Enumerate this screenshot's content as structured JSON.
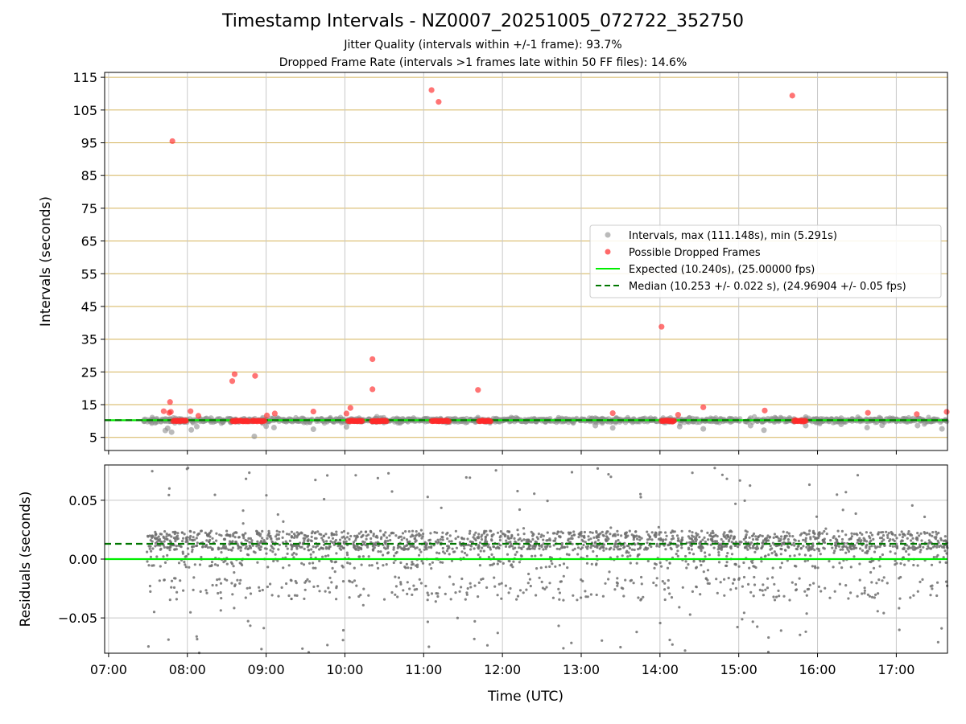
{
  "chart_data": [
    {
      "type": "scatter",
      "title": "Timestamp Intervals - NZ0007_20251005_072722_352750",
      "subtitle_lines": [
        "Jitter Quality (intervals within +/-1 frame): 93.7%",
        "Dropped Frame Rate (intervals >1 frames late within 50 FF files): 14.6%"
      ],
      "ylabel": "Intervals (seconds)",
      "xlim_hours": [
        6.95,
        17.65
      ],
      "ylim": [
        1.0,
        116.5
      ],
      "yticks": [
        5,
        15,
        25,
        35,
        45,
        55,
        65,
        75,
        85,
        95,
        105,
        115
      ],
      "xticks": [
        7,
        8,
        9,
        10,
        11,
        12,
        13,
        14,
        15,
        16,
        17
      ],
      "xtick_labels": [
        "07:00",
        "08:00",
        "09:00",
        "10:00",
        "11:00",
        "12:00",
        "13:00",
        "14:00",
        "15:00",
        "16:00",
        "17:00"
      ],
      "grid": true,
      "legend_position": "right",
      "colors": {
        "intervals": "#8c8c8c",
        "dropped": "#ff2a2a",
        "expected": "#00ee00",
        "median": "#007700",
        "hgrid": "#d4b35a",
        "vgrid": "#c8c8c8"
      },
      "series": [
        {
          "name": "Intervals, max (111.148s), min (5.291s)",
          "kind": "scatter",
          "points": [
            [
              7.45,
              9.9
            ],
            [
              7.55,
              9.7
            ],
            [
              7.62,
              9.8
            ],
            [
              7.7,
              10.1
            ],
            [
              7.72,
              7.1
            ],
            [
              7.75,
              7.8
            ],
            [
              7.8,
              6.6
            ],
            [
              7.9,
              9.6
            ],
            [
              8.05,
              7.3
            ],
            [
              8.12,
              8.3
            ],
            [
              8.2,
              9.9
            ],
            [
              8.3,
              10.9
            ],
            [
              8.45,
              9.7
            ],
            [
              8.55,
              9.6
            ],
            [
              8.72,
              10.7
            ],
            [
              8.85,
              5.3
            ],
            [
              9.0,
              8.4
            ],
            [
              9.1,
              8.0
            ],
            [
              9.3,
              10.2
            ],
            [
              9.5,
              9.8
            ],
            [
              9.6,
              7.5
            ],
            [
              9.7,
              10.6
            ],
            [
              9.85,
              10.1
            ],
            [
              10.02,
              8.2
            ],
            [
              10.2,
              10.4
            ],
            [
              10.4,
              9.7
            ],
            [
              10.6,
              10.3
            ],
            [
              10.8,
              9.8
            ],
            [
              11.0,
              10.1
            ],
            [
              11.3,
              9.7
            ],
            [
              11.5,
              10.3
            ],
            [
              11.8,
              9.8
            ],
            [
              12.0,
              10.1
            ],
            [
              12.3,
              9.8
            ],
            [
              12.6,
              10.2
            ],
            [
              12.9,
              9.7
            ],
            [
              13.18,
              10.9
            ],
            [
              13.18,
              8.6
            ],
            [
              13.4,
              7.9
            ],
            [
              13.6,
              10.4
            ],
            [
              13.8,
              9.9
            ],
            [
              14.05,
              9.6
            ],
            [
              14.25,
              8.3
            ],
            [
              14.35,
              9.9
            ],
            [
              14.5,
              9.7
            ],
            [
              14.55,
              7.6
            ],
            [
              14.8,
              9.9
            ],
            [
              15.0,
              10.1
            ],
            [
              15.15,
              10.9
            ],
            [
              15.15,
              8.6
            ],
            [
              15.32,
              7.2
            ],
            [
              15.5,
              10.2
            ],
            [
              15.7,
              9.8
            ],
            [
              15.85,
              11.2
            ],
            [
              15.85,
              8.6
            ],
            [
              16.0,
              10.2
            ],
            [
              16.3,
              10.9
            ],
            [
              16.3,
              9.0
            ],
            [
              16.5,
              10.1
            ],
            [
              16.63,
              8.0
            ],
            [
              16.8,
              10.8
            ],
            [
              16.82,
              8.7
            ],
            [
              17.0,
              9.9
            ],
            [
              17.1,
              10.3
            ],
            [
              17.27,
              8.6
            ],
            [
              17.45,
              9.9
            ],
            [
              17.58,
              7.6
            ],
            [
              17.62,
              10.3
            ]
          ]
        },
        {
          "name": "Possible Dropped Frames",
          "kind": "scatter",
          "points": [
            [
              7.7,
              13.0
            ],
            [
              7.77,
              12.5
            ],
            [
              7.78,
              15.8
            ],
            [
              7.79,
              12.8
            ],
            [
              7.81,
              95.5
            ],
            [
              7.86,
              10.1
            ],
            [
              7.92,
              10.1
            ],
            [
              7.98,
              10.1
            ],
            [
              8.04,
              13.0
            ],
            [
              8.14,
              11.6
            ],
            [
              8.57,
              22.2
            ],
            [
              8.6,
              24.3
            ],
            [
              8.86,
              23.8
            ],
            [
              9.01,
              11.7
            ],
            [
              9.11,
              12.3
            ],
            [
              9.6,
              12.9
            ],
            [
              10.02,
              12.3
            ],
            [
              10.07,
              14.0
            ],
            [
              10.35,
              28.9
            ],
            [
              10.35,
              19.7
            ],
            [
              11.1,
              111.1
            ],
            [
              11.19,
              107.5
            ],
            [
              11.69,
              19.5
            ],
            [
              13.4,
              12.4
            ],
            [
              14.02,
              38.8
            ],
            [
              14.23,
              11.9
            ],
            [
              14.55,
              14.2
            ],
            [
              15.33,
              13.2
            ],
            [
              15.68,
              109.4
            ],
            [
              16.64,
              12.5
            ],
            [
              17.26,
              12.1
            ],
            [
              17.64,
              12.8
            ]
          ],
          "clusters": [
            [
              7.82,
              7.98,
              10.0
            ],
            [
              8.57,
              8.78,
              10.0
            ],
            [
              8.82,
              8.98,
              10.0
            ],
            [
              10.04,
              10.22,
              10.0
            ],
            [
              10.34,
              10.53,
              10.0
            ],
            [
              11.1,
              11.32,
              10.0
            ],
            [
              11.7,
              11.85,
              10.0
            ],
            [
              14.02,
              14.18,
              10.0
            ],
            [
              15.7,
              15.85,
              10.0
            ]
          ]
        },
        {
          "name": "Expected (10.240s), (25.00000 fps)",
          "kind": "line",
          "y": 10.24
        },
        {
          "name": "Median (10.253 +/- 0.022 s), (24.96904 +/- 0.05 fps)",
          "kind": "dashed-line",
          "y": 10.253
        }
      ]
    },
    {
      "type": "scatter",
      "ylabel": "Residuals (seconds)",
      "xlabel": "Time (UTC)",
      "xlim_hours": [
        6.95,
        17.65
      ],
      "ylim": [
        -0.08,
        0.08
      ],
      "yticks": [
        -0.05,
        0.0,
        0.05
      ],
      "ytick_labels": [
        "−0.05",
        "0.00",
        "0.05"
      ],
      "xticks": [
        7,
        8,
        9,
        10,
        11,
        12,
        13,
        14,
        15,
        16,
        17
      ],
      "xtick_labels": [
        "07:00",
        "08:00",
        "09:00",
        "10:00",
        "11:00",
        "12:00",
        "13:00",
        "14:00",
        "15:00",
        "16:00",
        "17:00"
      ],
      "grid": true,
      "series": [
        {
          "name": "Residuals",
          "kind": "scatter",
          "x_range": [
            7.48,
            17.65
          ],
          "count": 2400,
          "dominant_band": [
            0.008,
            0.024
          ],
          "secondary_band": [
            -0.035,
            -0.015
          ],
          "spread_range": [
            -0.08,
            0.078
          ]
        },
        {
          "name": "Expected",
          "kind": "line",
          "y": 0.0
        },
        {
          "name": "Median",
          "kind": "dashed-line",
          "y": 0.013
        }
      ]
    }
  ]
}
